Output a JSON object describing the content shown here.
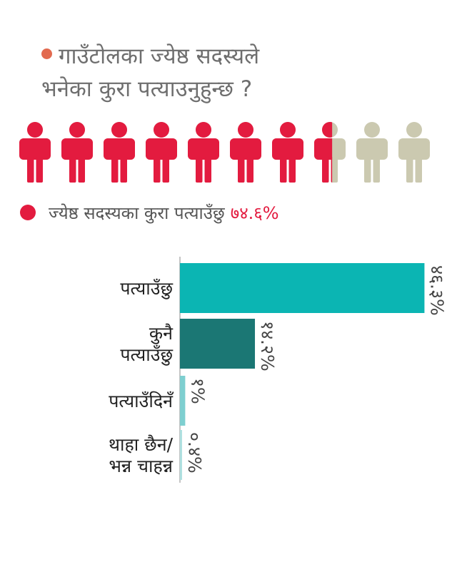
{
  "title": {
    "line1": "गाउँटोलका ज्येष्ठ सदस्यले",
    "line2": "भनेका कुरा पत्याउनुहुन्छ ?",
    "bullet_color": "#e26a4f"
  },
  "pictogram": {
    "total_icons": 10,
    "filled_fraction": 0.746,
    "filled_color": "#e31b3f",
    "empty_color": "#cbc9b0",
    "icon": "person-icon"
  },
  "legend": {
    "label": "ज्येष्ठ सदस्यका कुरा पत्याउँछु",
    "value": "७४.६%",
    "color": "#e31b3f"
  },
  "chart_data": {
    "type": "bar",
    "orientation": "horizontal",
    "categories": [
      [
        "पत्याउँछु"
      ],
      [
        "कुनै",
        "पत्याउँछु"
      ],
      [
        "पत्याउँदिनँ"
      ],
      [
        "थाहा छैन/",
        "भन्न चाहन्न"
      ]
    ],
    "values": [
      46.3,
      14.2,
      1.0,
      0.4
    ],
    "value_labels": [
      "४६.३%",
      "१४.२%",
      "१%",
      "०.४%"
    ],
    "colors": [
      "#0bb5b3",
      "#1b7774",
      "#7ecfd0",
      "#aee0e0"
    ],
    "xlim": [
      0,
      48
    ]
  }
}
